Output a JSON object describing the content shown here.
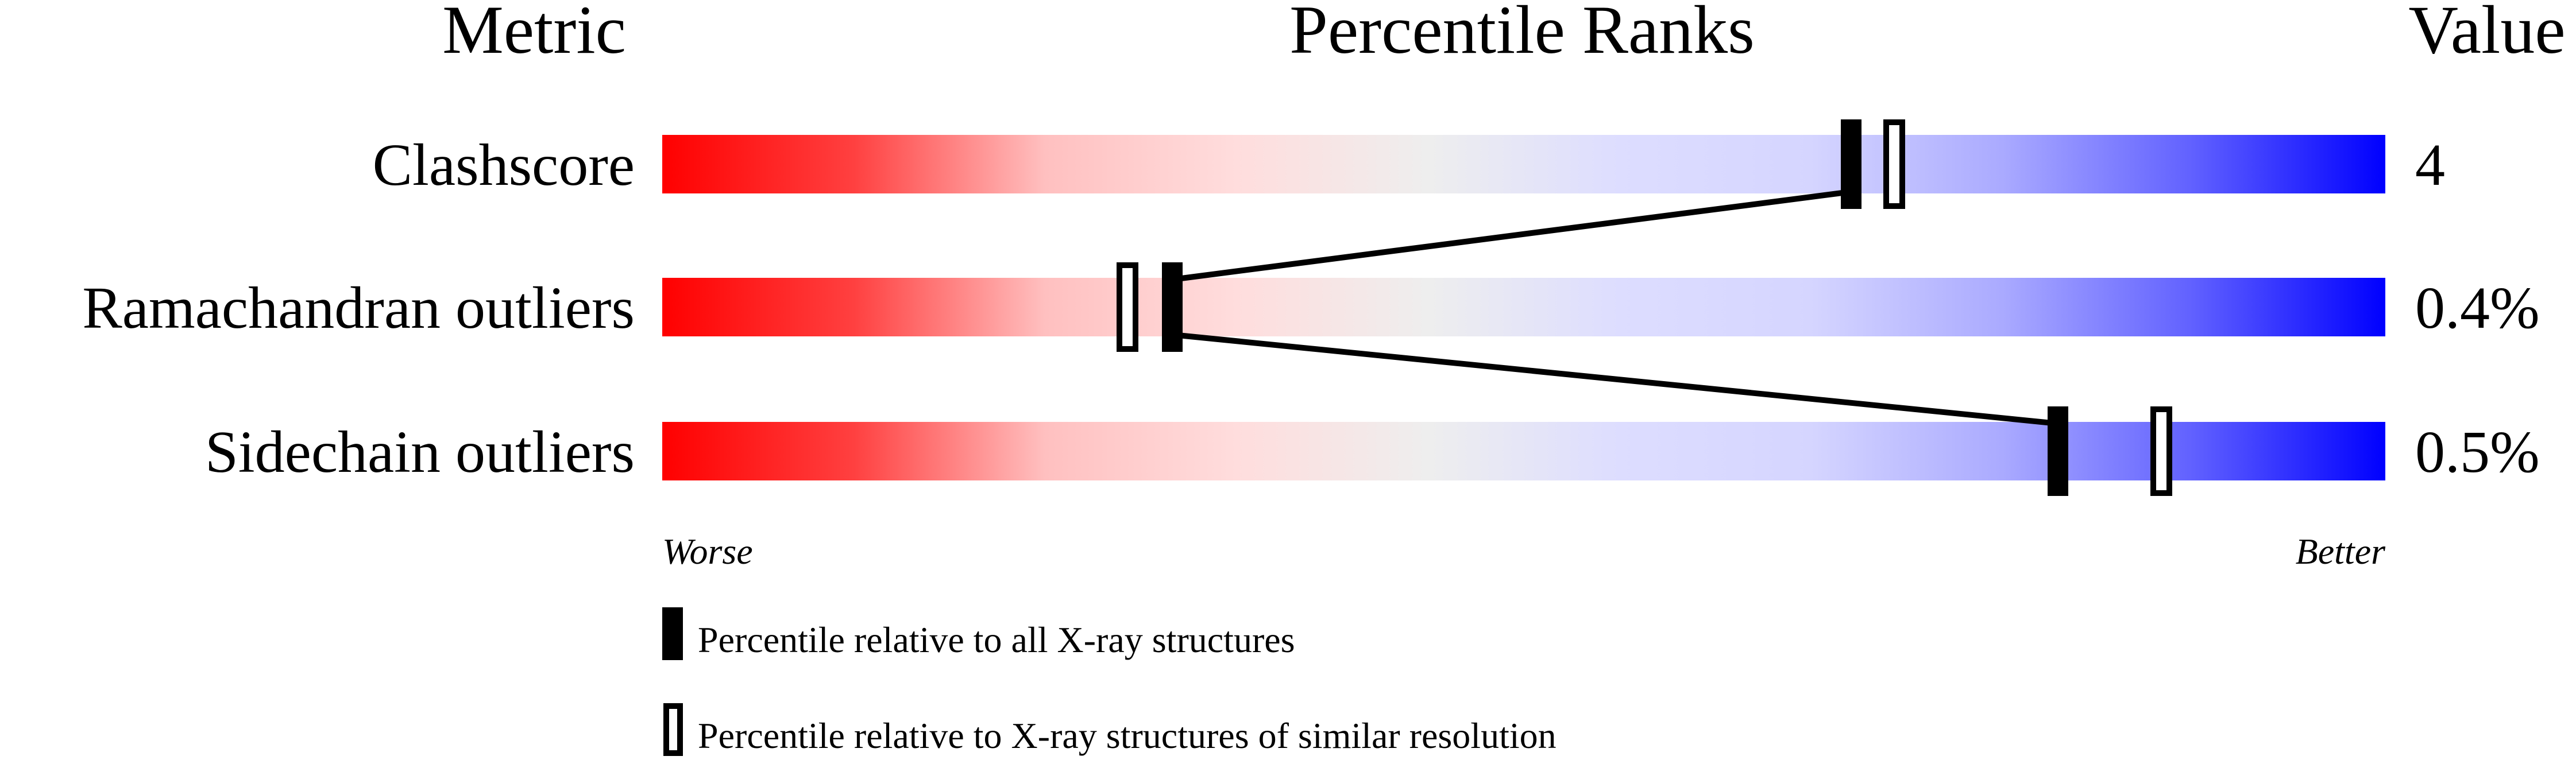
{
  "chart_data": {
    "type": "percentile-slider",
    "headers": {
      "metric": "Metric",
      "ranks": "Percentile Ranks",
      "value": "Value"
    },
    "axis": {
      "min": 0,
      "max": 100,
      "left_label": "Worse",
      "right_label": "Better"
    },
    "gradient_colors": [
      "#ff0000",
      "#ff4040",
      "#ffc0c0",
      "#ffdddd",
      "#eeeeee",
      "#ddddff",
      "#d5d5ff",
      "#aaaaff",
      "#6060ff",
      "#0000ff"
    ],
    "rows": [
      {
        "metric": "Clashscore",
        "value": "4",
        "percentile_all": 69,
        "percentile_similar": 71.5
      },
      {
        "metric": "Ramachandran outliers",
        "value": "0.4%",
        "percentile_all": 29.6,
        "percentile_similar": 27
      },
      {
        "metric": "Sidechain outliers",
        "value": "0.5%",
        "percentile_all": 81,
        "percentile_similar": 87
      }
    ],
    "legend": {
      "all": "Percentile relative to all X-ray structures",
      "similar": "Percentile relative to X-ray structures of similar resolution"
    }
  }
}
